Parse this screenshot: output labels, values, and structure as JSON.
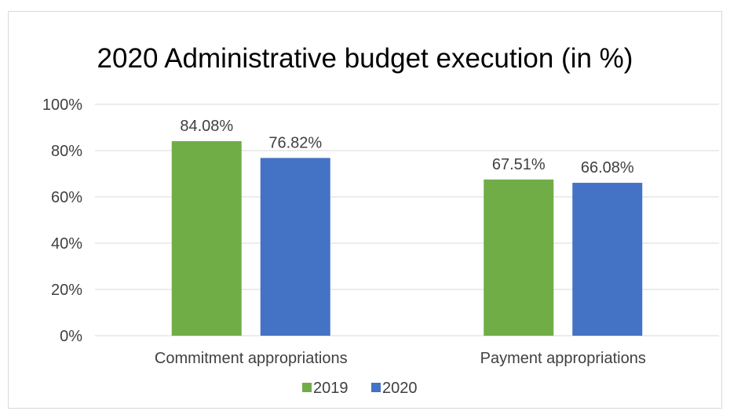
{
  "chart_data": {
    "type": "bar",
    "title": "2020 Administrative budget execution (in %)",
    "categories": [
      "Commitment appropriations",
      "Payment appropriations"
    ],
    "series": [
      {
        "name": "2019",
        "values": [
          84.08,
          67.51
        ],
        "labels": [
          "84.08%",
          "67.51%"
        ],
        "color": "#70ad47"
      },
      {
        "name": "2020",
        "values": [
          76.82,
          66.08
        ],
        "labels": [
          "76.82%",
          "66.08%"
        ],
        "color": "#4472c4"
      }
    ],
    "ylim": [
      0,
      100
    ],
    "yticks": [
      0,
      20,
      40,
      60,
      80,
      100
    ],
    "ytick_labels": [
      "0%",
      "20%",
      "40%",
      "60%",
      "80%",
      "100%"
    ],
    "grid": true,
    "legend_position": "bottom",
    "axis_color": "#d9d9d9"
  }
}
